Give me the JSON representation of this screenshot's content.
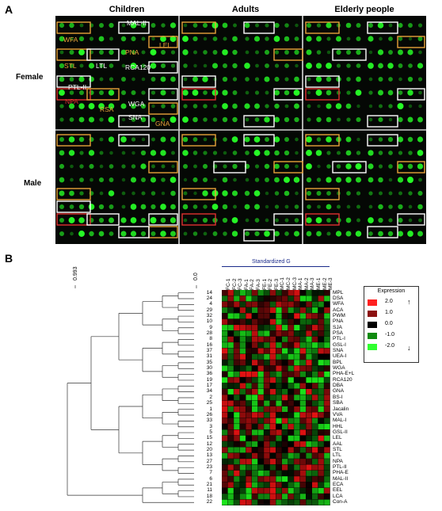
{
  "panel_a": {
    "letter": "A",
    "groups": [
      "Children",
      "Adults",
      "Elderly people"
    ],
    "rows": [
      "Female",
      "Male"
    ],
    "labels": [
      {
        "text": "MAL-II",
        "color": "#ffffff",
        "pos": [
          160,
          25
        ]
      },
      {
        "text": "WFA",
        "color": "#e8a33a",
        "pos": [
          80,
          46
        ]
      },
      {
        "text": "LEL",
        "color": "#e8a33a",
        "pos": [
          201,
          53
        ]
      },
      {
        "text": "STL",
        "color": "#e8a33a",
        "pos": [
          81,
          79
        ]
      },
      {
        "text": "LTL",
        "color": "#ffffff",
        "pos": [
          121,
          79
        ]
      },
      {
        "text": "PNA",
        "color": "#e8a33a",
        "pos": [
          158,
          62
        ]
      },
      {
        "text": "RCA120",
        "color": "#ffffff",
        "pos": [
          158,
          81
        ]
      },
      {
        "text": "PTL-II",
        "color": "#ffffff",
        "pos": [
          86,
          106
        ]
      },
      {
        "text": "NPA",
        "color": "#e03030",
        "pos": [
          82,
          124
        ]
      },
      {
        "text": "RSA",
        "color": "#e8a33a",
        "pos": [
          126,
          134
        ]
      },
      {
        "text": "WGA",
        "color": "#ffffff",
        "pos": [
          162,
          127
        ]
      },
      {
        "text": "SNA",
        "color": "#ffffff",
        "pos": [
          162,
          144
        ]
      },
      {
        "text": "GNA",
        "color": "#e8a33a",
        "pos": [
          196,
          152
        ]
      }
    ]
  },
  "panel_b": {
    "letter": "B",
    "scale_left": "0.993",
    "scale_right": "0.0",
    "heatmap_title": "Standardized G",
    "columns": [
      "FC-1",
      "FC-2",
      "FC-3",
      "FA-1",
      "FA-2",
      "FA-3",
      "FE-1",
      "FE-2",
      "FE-3",
      "MC-1",
      "MC-2",
      "MC-3",
      "MA-1",
      "MA-2",
      "MA-3",
      "ME-1",
      "ME-2",
      "ME-3"
    ],
    "row_numbers": [
      "14",
      "24",
      "4",
      "29",
      "32",
      "10",
      "9",
      "28",
      "8",
      "16",
      "37",
      "31",
      "35",
      "30",
      "36",
      "19",
      "17",
      "34",
      "2",
      "25",
      "1",
      "26",
      "33",
      "3",
      "5",
      "15",
      "12",
      "20",
      "13",
      "27",
      "23",
      "7",
      "6",
      "21",
      "11",
      "18",
      "22"
    ],
    "lectins": [
      "MPL",
      "DSA",
      "WFA",
      "ACA",
      "PWM",
      "PNA",
      "SJA",
      "PSA",
      "PTL-I",
      "GSL-I",
      "SNA",
      "UEA-I",
      "BPL",
      "WGA",
      "PHA-E+L",
      "RCA120",
      "DBA",
      "GNA",
      "BS-I",
      "SBA",
      "Jacalin",
      "VVA",
      "MAL-I",
      "HHL",
      "GSL-II",
      "LEL",
      "AAL",
      "STL",
      "LTL",
      "NPA",
      "PTL-II",
      "PHA-E",
      "MAL-II",
      "ECA",
      "EEL",
      "LCA",
      "Con-A"
    ],
    "legend": {
      "title": "Expression",
      "ticks": [
        "2.0",
        "1.0",
        "0.0",
        "-1.0",
        "-2.0"
      ],
      "colors": [
        "#ff2020",
        "#8b1010",
        "#000000",
        "#0f8a0f",
        "#30ff30"
      ]
    }
  }
}
